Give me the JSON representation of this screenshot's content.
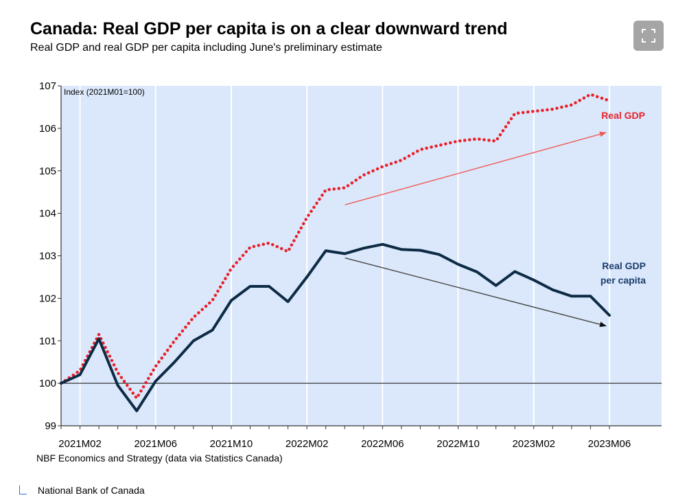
{
  "chart_data": {
    "type": "line",
    "title": "Canada: Real GDP per capita is on a clear downward trend",
    "subtitle": "Real GDP and real GDP per capita including June's preliminary estimate",
    "ylabel": "Index (2021M01=100)",
    "ylim": [
      99,
      107
    ],
    "yticks": [
      99,
      100,
      101,
      102,
      103,
      104,
      105,
      106,
      107
    ],
    "xticks": [
      "2021M02",
      "2021M06",
      "2021M10",
      "2022M02",
      "2022M06",
      "2022M10",
      "2023M02",
      "2023M06"
    ],
    "x": [
      "2021M01",
      "2021M02",
      "2021M03",
      "2021M04",
      "2021M05",
      "2021M06",
      "2021M07",
      "2021M08",
      "2021M09",
      "2021M10",
      "2021M11",
      "2021M12",
      "2022M01",
      "2022M02",
      "2022M03",
      "2022M04",
      "2022M05",
      "2022M06",
      "2022M07",
      "2022M08",
      "2022M09",
      "2022M10",
      "2022M11",
      "2022M12",
      "2023M01",
      "2023M02",
      "2023M03",
      "2023M04",
      "2023M05",
      "2023M06"
    ],
    "series": [
      {
        "name": "Real GDP",
        "color": "#e8202a",
        "style": "dotted",
        "values": [
          100.0,
          100.3,
          101.15,
          100.25,
          99.65,
          100.4,
          101.0,
          101.55,
          101.95,
          102.7,
          103.2,
          103.3,
          103.1,
          103.9,
          104.55,
          104.6,
          104.9,
          105.1,
          105.25,
          105.5,
          105.6,
          105.7,
          105.75,
          105.7,
          106.35,
          106.4,
          106.45,
          106.55,
          106.8,
          106.65
        ]
      },
      {
        "name": "Real GDP per capita",
        "color": "#0d2b45",
        "style": "solid",
        "values": [
          100.0,
          100.2,
          101.05,
          99.95,
          99.35,
          100.05,
          100.5,
          101.0,
          101.25,
          101.95,
          102.28,
          102.28,
          101.92,
          102.5,
          103.12,
          103.05,
          103.18,
          103.27,
          103.15,
          103.13,
          103.03,
          102.8,
          102.62,
          102.3,
          102.63,
          102.43,
          102.2,
          102.05,
          102.05,
          101.6
        ]
      }
    ],
    "series_labels": {
      "real_gdp": "Real GDP",
      "per_capita_line1": "Real GDP",
      "per_capita_line2": "per capita"
    },
    "trend_arrows": [
      {
        "series": "Real GDP",
        "color": "#f05a5a",
        "from": {
          "x": "2022M03",
          "y": 104.2
        },
        "to": {
          "x": "2023M06",
          "y": 105.9
        }
      },
      {
        "series": "Real GDP per capita",
        "color": "#444444",
        "from": {
          "x": "2022M03",
          "y": 102.95
        },
        "to": {
          "x": "2023M06",
          "y": 101.35
        }
      }
    ],
    "reference_line": 100,
    "grid": "vertical",
    "plot_background": "#dbe8fb"
  },
  "source_note": "NBF Economics and Strategy (data via Statistics Canada)",
  "caption": "National Bank of Canada",
  "expand_icon": "expand-icon"
}
